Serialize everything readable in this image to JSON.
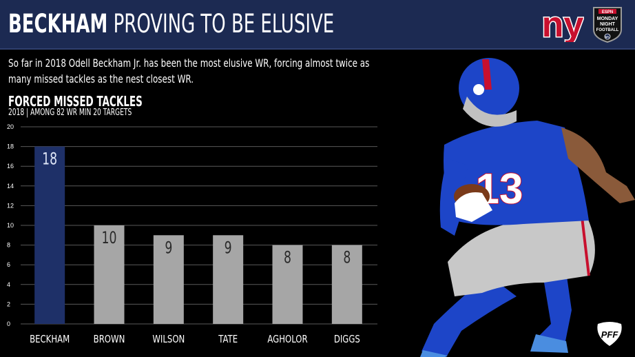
{
  "header": {
    "title_strong": "BECKHAM",
    "title_light": "PROVING TO BE ELUSIVE",
    "team_logo": "ny-giants-logo",
    "network_logo_lines": [
      "ESPN",
      "MONDAY",
      "NIGHT",
      "FOOTBALL",
      "NFL"
    ]
  },
  "description": "So far in 2018 Odell Beckham Jr. has been the most elusive WR, forcing almost twice as many missed tackles as the nest closest WR.",
  "player_photo": {
    "icon": "football-player-photo",
    "jersey_number": "13"
  },
  "brand_logo": "PFF",
  "colors": {
    "header_bg": "#1c2a52",
    "highlight_bar": "#1e3068",
    "other_bar": "#a6a6a6",
    "background": "#000000",
    "jersey_blue": "#1d45c8"
  },
  "chart_data": {
    "type": "bar",
    "title": "FORCED MISSED TACKLES",
    "subtitle": "2018 | AMONG 82 WR MIN 20 TARGETS",
    "categories": [
      "BECKHAM",
      "BROWN",
      "WILSON",
      "TATE",
      "AGHOLOR",
      "DIGGS"
    ],
    "values": [
      18,
      10,
      9,
      9,
      8,
      8
    ],
    "highlight_index": 0,
    "ylim": [
      0,
      20
    ],
    "yticks": [
      0,
      2,
      4,
      6,
      8,
      10,
      12,
      14,
      16,
      18,
      20
    ],
    "xlabel": "",
    "ylabel": "",
    "grid": true,
    "data_labels": true
  }
}
